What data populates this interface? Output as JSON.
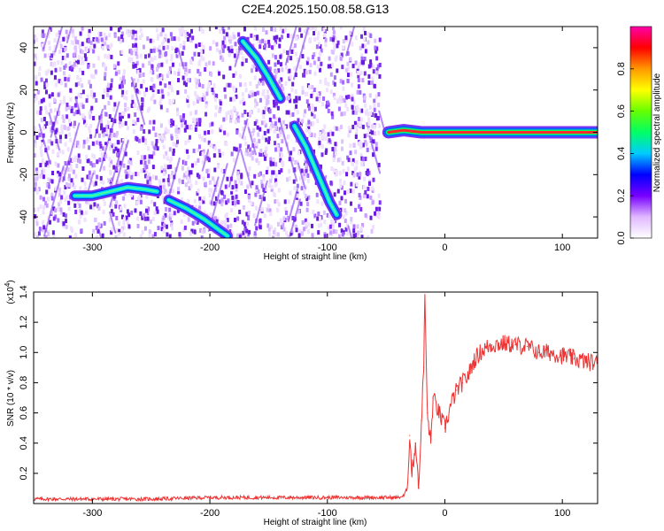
{
  "page": {
    "title": "C2E4.2025.150.08.58.G13"
  },
  "chart_data": [
    {
      "type": "heatmap",
      "title": "C2E4.2025.150.08.58.G13",
      "xlabel": "Height of straight line (km)",
      "ylabel": "Frequency (Hz)",
      "xlim": [
        -350,
        130
      ],
      "ylim": [
        -50,
        50
      ],
      "xticks": [
        -300,
        -200,
        -100,
        0,
        100
      ],
      "xtick_labels": [
        "-300",
        "-200",
        "-100",
        "0",
        "100"
      ],
      "yticks": [
        -40,
        -20,
        0,
        20,
        40
      ],
      "ytick_labels": [
        "-40",
        "-20",
        "0",
        "20",
        "40"
      ],
      "grid": false,
      "noise_region_x": [
        -350,
        -55
      ],
      "ridges": [
        {
          "points": [
            [
              -315,
              -30
            ],
            [
              -300,
              -30
            ],
            [
              -285,
              -28
            ],
            [
              -270,
              -26
            ],
            [
              -255,
              -27
            ],
            [
              -245,
              -28
            ]
          ]
        },
        {
          "points": [
            [
              -235,
              -32
            ],
            [
              -220,
              -36
            ],
            [
              -205,
              -41
            ],
            [
              -195,
              -45
            ],
            [
              -185,
              -49
            ]
          ]
        },
        {
          "points": [
            [
              -172,
              43
            ],
            [
              -160,
              35
            ],
            [
              -150,
              26
            ],
            [
              -140,
              16
            ]
          ]
        },
        {
          "points": [
            [
              -128,
              3
            ],
            [
              -118,
              -7
            ],
            [
              -108,
              -20
            ],
            [
              -98,
              -33
            ],
            [
              -92,
              -39
            ]
          ]
        },
        {
          "points": [
            [
              -48,
              0
            ],
            [
              -35,
              1
            ],
            [
              -20,
              0
            ],
            [
              0,
              0
            ],
            [
              130,
              0
            ]
          ]
        }
      ],
      "colorbar": {
        "label": "Normalized spectral amplitude",
        "range": [
          0.0,
          1.0
        ],
        "ticks": [
          0.0,
          0.2,
          0.4,
          0.6,
          0.8
        ],
        "tick_labels": [
          "0.0",
          "0.2",
          "0.4",
          "0.6",
          "0.8"
        ],
        "colors": [
          "#ffffff",
          "#e0b8ff",
          "#7700ff",
          "#0000ff",
          "#00ccff",
          "#00ff66",
          "#66ff00",
          "#ffff00",
          "#ff9900",
          "#ff0000",
          "#ff00aa"
        ]
      }
    },
    {
      "type": "line",
      "xlabel": "Height of straight line (km)",
      "ylabel": "SNR (10 * v/v)",
      "y_multiplier_label": "(x10",
      "y_multiplier_exp": "4",
      "y_multiplier_close": ")",
      "xlim": [
        -350,
        130
      ],
      "ylim": [
        0,
        1.4
      ],
      "xticks": [
        -300,
        -200,
        -100,
        0,
        100
      ],
      "xtick_labels": [
        "-300",
        "-200",
        "-100",
        "0",
        "100"
      ],
      "yticks": [
        0.2,
        0.4,
        0.6,
        0.8,
        1.0,
        1.2,
        1.4
      ],
      "ytick_labels": [
        "0.2",
        "0.4",
        "0.6",
        "0.8",
        "1.0",
        "1.2",
        "1.4"
      ],
      "grid": false,
      "series": [
        {
          "color": "#ee3333",
          "x": [
            -350,
            -300,
            -250,
            -200,
            -150,
            -100,
            -60,
            -50,
            -40,
            -35,
            -32,
            -30,
            -28,
            -25,
            -22,
            -20,
            -18,
            -17,
            -15,
            -12,
            -10,
            -5,
            0,
            5,
            10,
            15,
            20,
            25,
            30,
            35,
            40,
            50,
            60,
            70,
            80,
            90,
            100,
            110,
            120,
            130
          ],
          "y": [
            0.03,
            0.03,
            0.03,
            0.04,
            0.04,
            0.04,
            0.04,
            0.04,
            0.04,
            0.05,
            0.1,
            0.45,
            0.2,
            0.4,
            0.1,
            0.55,
            0.9,
            1.4,
            0.6,
            0.4,
            0.7,
            0.6,
            0.5,
            0.65,
            0.75,
            0.8,
            0.85,
            0.95,
            1.0,
            1.03,
            1.05,
            1.06,
            1.05,
            1.04,
            1.0,
            1.0,
            0.98,
            0.96,
            0.94,
            0.93
          ]
        }
      ]
    }
  ]
}
